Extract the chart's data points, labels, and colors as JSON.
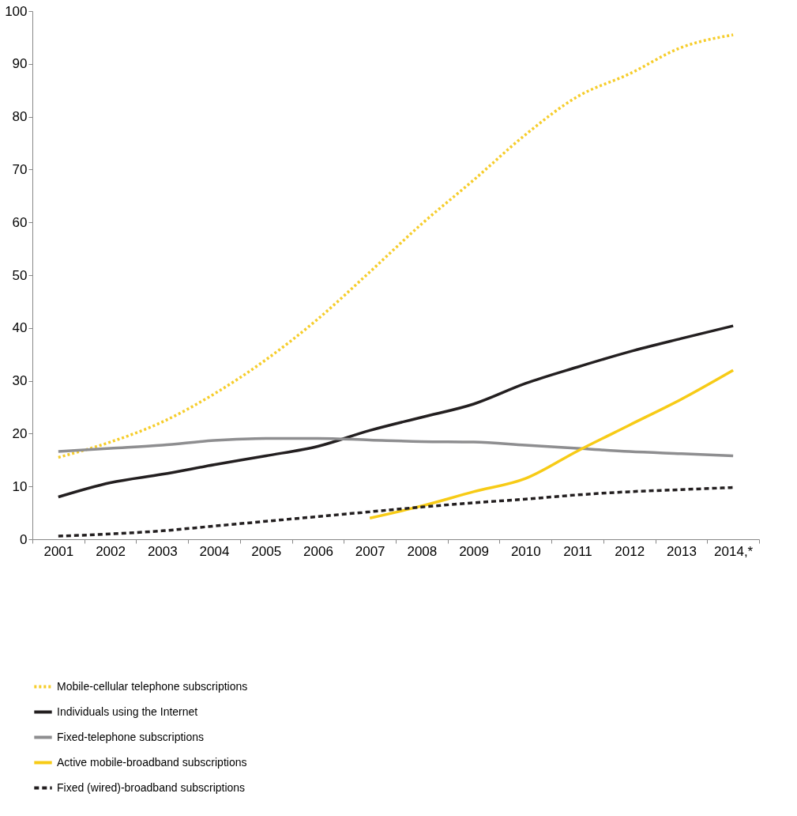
{
  "chart_data": {
    "type": "line",
    "categories": [
      "2001",
      "2002",
      "2003",
      "2004",
      "2005",
      "2006",
      "2007",
      "2008",
      "2009",
      "2010",
      "2011",
      "2012",
      "2013",
      "2014,*"
    ],
    "series": [
      {
        "name": "Mobile-cellular telephone subscriptions",
        "color": "#f6cd2c",
        "line_style": "dotted",
        "values": [
          15.5,
          18.4,
          22.2,
          27.5,
          34,
          41.7,
          50.6,
          59.7,
          68,
          76.6,
          83.8,
          88.1,
          93.1,
          95.5
        ]
      },
      {
        "name": "Individuals using the Internet",
        "color": "#231f20",
        "line_style": "solid",
        "values": [
          8,
          10.7,
          12.3,
          14.1,
          15.8,
          17.6,
          20.6,
          23.1,
          25.6,
          29.5,
          32.6,
          35.5,
          38,
          40.4
        ]
      },
      {
        "name": "Fixed-telephone subscriptions",
        "color": "#8e8e90",
        "line_style": "solid",
        "values": [
          16.6,
          17.2,
          17.8,
          18.7,
          19.1,
          19.1,
          18.8,
          18.5,
          18.4,
          17.8,
          17.2,
          16.6,
          16.2,
          15.8
        ]
      },
      {
        "name": "Active mobile-broadband subscriptions",
        "color": "#f7cb16",
        "line_style": "solid",
        "values": [
          null,
          null,
          null,
          null,
          null,
          null,
          4,
          6.3,
          9,
          11.5,
          16.7,
          21.6,
          26.5,
          32
        ]
      },
      {
        "name": "Fixed (wired)-broadband subscriptions",
        "color": "#231f20",
        "line_style": "dashed",
        "values": [
          0.6,
          1,
          1.6,
          2.5,
          3.4,
          4.3,
          5.2,
          6.1,
          6.9,
          7.6,
          8.4,
          9,
          9.4,
          9.8
        ]
      }
    ],
    "ylim": [
      0,
      100
    ],
    "yticks": [
      0,
      10,
      20,
      30,
      40,
      50,
      60,
      70,
      80,
      90,
      100
    ],
    "grid": false,
    "legend": "bottom left",
    "marker": "none"
  }
}
